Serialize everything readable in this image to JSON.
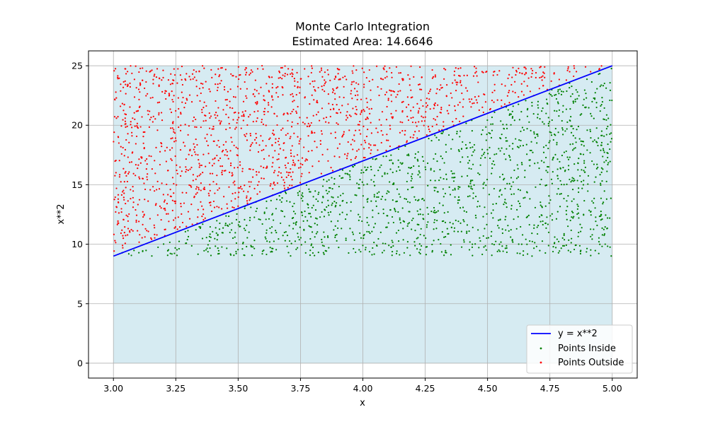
{
  "chart_data": {
    "type": "scatter",
    "title": "Monte Carlo Integration",
    "subtitle": "Estimated Area: 14.6646",
    "xlabel": "x",
    "ylabel": "x**2",
    "xlim": [
      2.9,
      5.1
    ],
    "ylim": [
      -1.25,
      26.25
    ],
    "x_ticks": [
      {
        "value": 3.0,
        "label": "3.00"
      },
      {
        "value": 3.25,
        "label": "3.25"
      },
      {
        "value": 3.5,
        "label": "3.50"
      },
      {
        "value": 3.75,
        "label": "3.75"
      },
      {
        "value": 4.0,
        "label": "4.00"
      },
      {
        "value": 4.25,
        "label": "4.25"
      },
      {
        "value": 4.5,
        "label": "4.50"
      },
      {
        "value": 4.75,
        "label": "4.75"
      },
      {
        "value": 5.0,
        "label": "5.00"
      }
    ],
    "y_ticks": [
      {
        "value": 0,
        "label": "0"
      },
      {
        "value": 5,
        "label": "5"
      },
      {
        "value": 10,
        "label": "10"
      },
      {
        "value": 15,
        "label": "15"
      },
      {
        "value": 20,
        "label": "20"
      },
      {
        "value": 25,
        "label": "25"
      }
    ],
    "grid": true,
    "legend_position": "lower-right",
    "fill_region": {
      "x": [
        3.0,
        5.0
      ],
      "y_bottom": 0,
      "y_top": 25,
      "color": "#add8e6"
    },
    "series": [
      {
        "name": "y = x**2",
        "type": "line",
        "color": "#0000ff",
        "x": [
          3.0,
          5.0
        ],
        "y": [
          9.0,
          25.0
        ]
      },
      {
        "name": "Points Inside",
        "type": "scatter",
        "color": "#008000"
      },
      {
        "name": "Points Outside",
        "type": "scatter",
        "color": "#ff0000"
      }
    ],
    "sampling": {
      "x_range": [
        3.0,
        5.0
      ],
      "y_range": [
        9.0,
        25.0
      ],
      "points": 3000
    }
  }
}
